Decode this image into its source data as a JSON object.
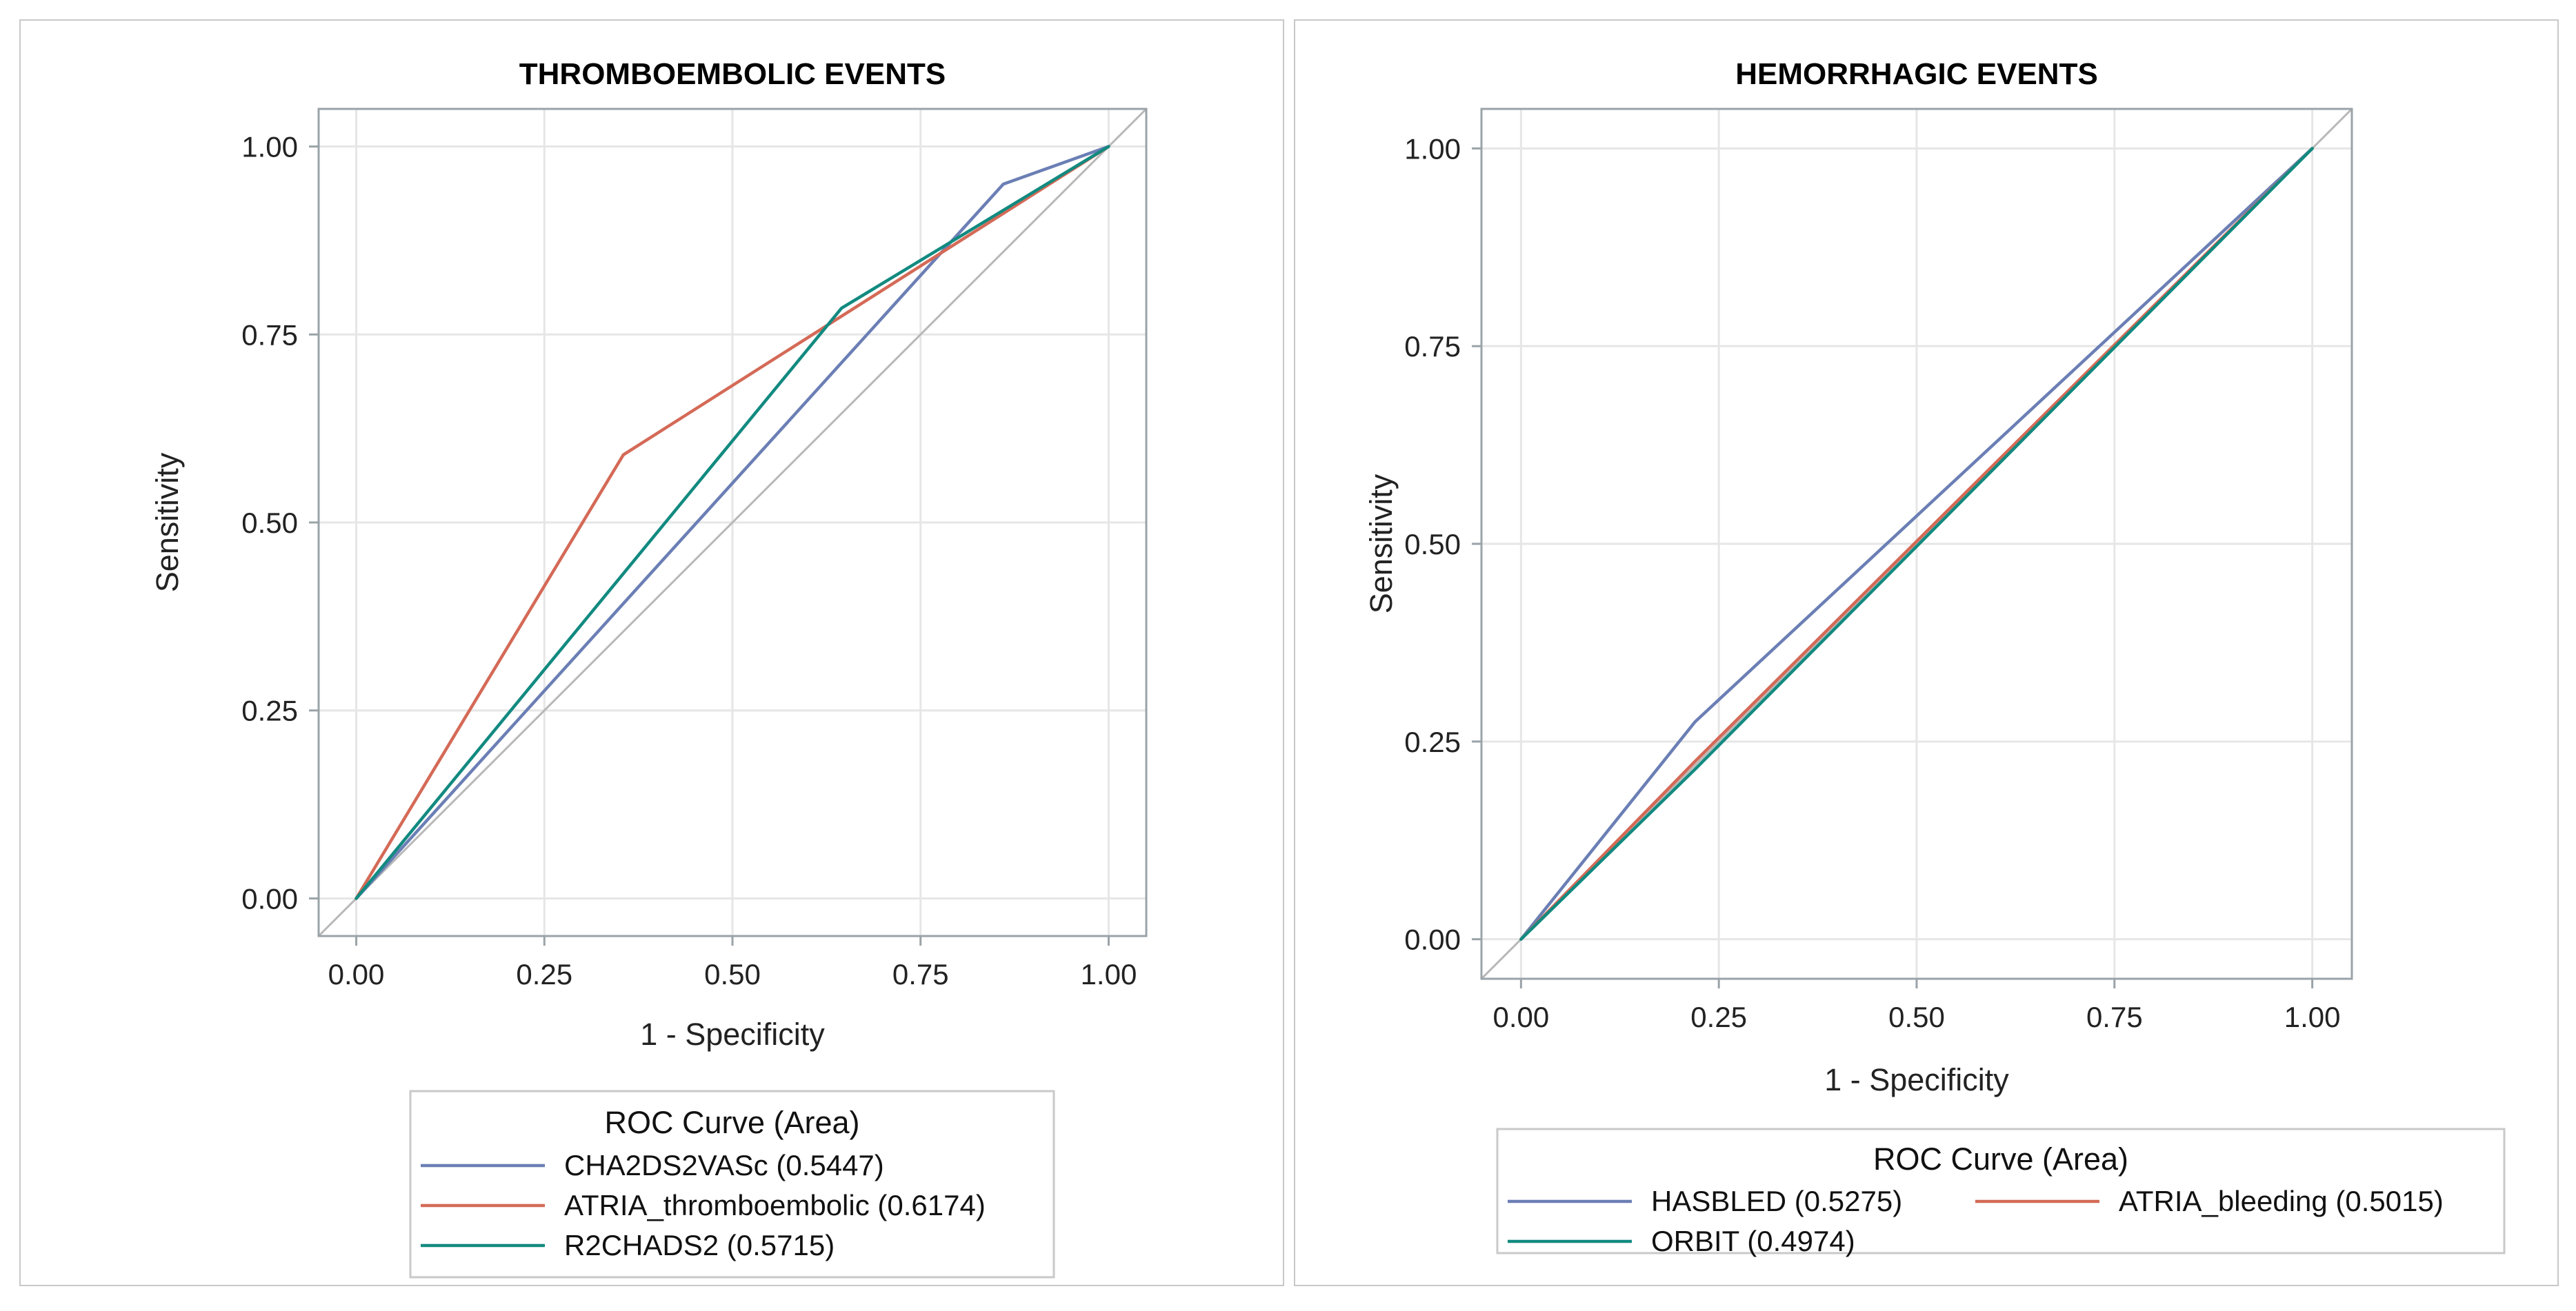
{
  "colors": {
    "blue": "#6b7fb5",
    "red": "#d46a57",
    "teal": "#128a80",
    "diagonal": "#b8b8b8",
    "grid": "#e6e6e6",
    "frame": "#9aa3a8"
  },
  "legend_title": "ROC Curve (Area)",
  "chart_data": [
    {
      "type": "line",
      "title": "THROMBOEMBOLIC EVENTS",
      "xlabel": "1 - Specificity",
      "ylabel": "Sensitivity",
      "xlim": [
        -0.05,
        1.05
      ],
      "ylim": [
        -0.05,
        1.05
      ],
      "xticks": [
        "0.00",
        "0.25",
        "0.50",
        "0.75",
        "1.00"
      ],
      "yticks": [
        "0.00",
        "0.25",
        "0.50",
        "0.75",
        "1.00"
      ],
      "grid": true,
      "legend_title": "ROC Curve (Area)",
      "legend_position": "bottom",
      "series": [
        {
          "name": "CHA2DS2VASc",
          "area": "(0.5447)",
          "color": "#6b7fb5",
          "x": [
            0,
            0.86,
            1.0
          ],
          "y": [
            0,
            0.95,
            1.0
          ]
        },
        {
          "name": "ATRIA_thromboembolic",
          "area": "(0.6174)",
          "color": "#d46a57",
          "x": [
            0,
            0.355,
            1.0
          ],
          "y": [
            0,
            0.59,
            1.0
          ]
        },
        {
          "name": "R2CHADS2",
          "area": "(0.5715)",
          "color": "#128a80",
          "x": [
            0,
            0.645,
            1.0
          ],
          "y": [
            0,
            0.785,
            1.0
          ]
        }
      ]
    },
    {
      "type": "line",
      "title": "HEMORRHAGIC EVENTS",
      "xlabel": "1 - Specificity",
      "ylabel": "Sensitivity",
      "xlim": [
        -0.05,
        1.05
      ],
      "ylim": [
        -0.05,
        1.05
      ],
      "xticks": [
        "0.00",
        "0.25",
        "0.50",
        "0.75",
        "1.00"
      ],
      "yticks": [
        "0.00",
        "0.25",
        "0.50",
        "0.75",
        "1.00"
      ],
      "grid": true,
      "legend_title": "ROC Curve (Area)",
      "legend_position": "bottom",
      "series": [
        {
          "name": "HASBLED",
          "area": "(0.5275)",
          "color": "#6b7fb5",
          "x": [
            0,
            0.22,
            1.0
          ],
          "y": [
            0,
            0.275,
            1.0
          ]
        },
        {
          "name": "ATRIA_bleeding",
          "area": "(0.5015)",
          "color": "#d46a57",
          "x": [
            0,
            0.22,
            1.0
          ],
          "y": [
            0,
            0.225,
            1.0
          ]
        },
        {
          "name": "ORBIT",
          "area": "(0.4974)",
          "color": "#128a80",
          "x": [
            0,
            0.22,
            1.0
          ],
          "y": [
            0,
            0.215,
            1.0
          ]
        }
      ]
    }
  ]
}
